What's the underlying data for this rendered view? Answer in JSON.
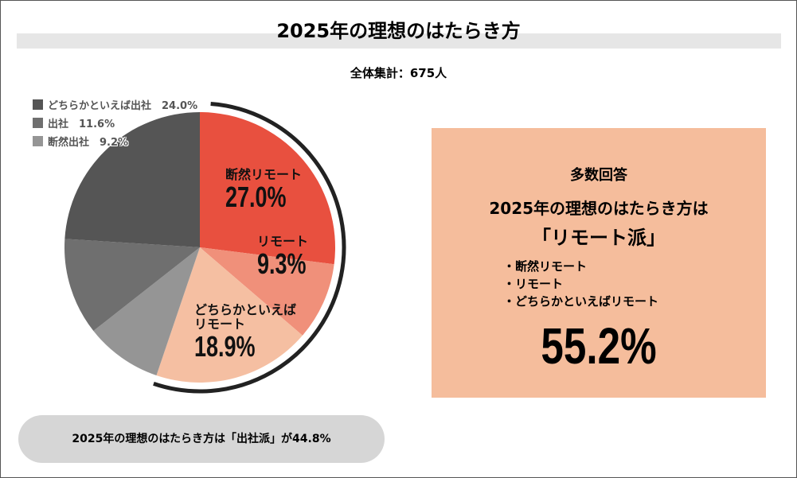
{
  "title": "2025年の理想のはたらき方",
  "total": "全体集計：675人",
  "chart_data": {
    "type": "pie",
    "title": "2025年の理想のはたらき方",
    "start": "top",
    "direction": "clockwise",
    "slices": [
      {
        "label": "断然リモート",
        "value": 27.0,
        "display": "27.0%",
        "color": "#e8503f"
      },
      {
        "label": "リモート",
        "value": 9.3,
        "display": "9.3%",
        "color": "#f0907a"
      },
      {
        "label": "どちらかといえばリモート",
        "label_lines": [
          "どちらかといえば",
          "リモート"
        ],
        "value": 18.9,
        "display": "18.9%",
        "color": "#f5bfa2"
      },
      {
        "label": "断然出社",
        "value": 9.2,
        "display": "9.2%",
        "color": "#959595"
      },
      {
        "label": "出社",
        "value": 11.6,
        "display": "11.6%",
        "color": "#6f6f6f"
      },
      {
        "label": "どちらかといえば出社",
        "value": 24.0,
        "display": "24.0%",
        "color": "#555555"
      }
    ],
    "legend": [
      {
        "text": "どちらかといえば出社　24.0%",
        "color": "#555555"
      },
      {
        "text": "出社　11.6%",
        "color": "#6f6f6f"
      },
      {
        "text": "断然出社　9.2%",
        "color": "#959595"
      }
    ],
    "legend_position": "top-left",
    "highlight_arc_total": 55.2
  },
  "box": {
    "heading": "多数回答",
    "line1": "2025年の理想のはたらき方は",
    "line2": "「リモート派」",
    "items": [
      "・断然リモート",
      "・リモート",
      "・どちらかといえばリモート"
    ],
    "percent": "55.2%",
    "color": "#f5bd9c"
  },
  "footer": "2025年の理想のはたらき方は「出社派」が44.8%"
}
